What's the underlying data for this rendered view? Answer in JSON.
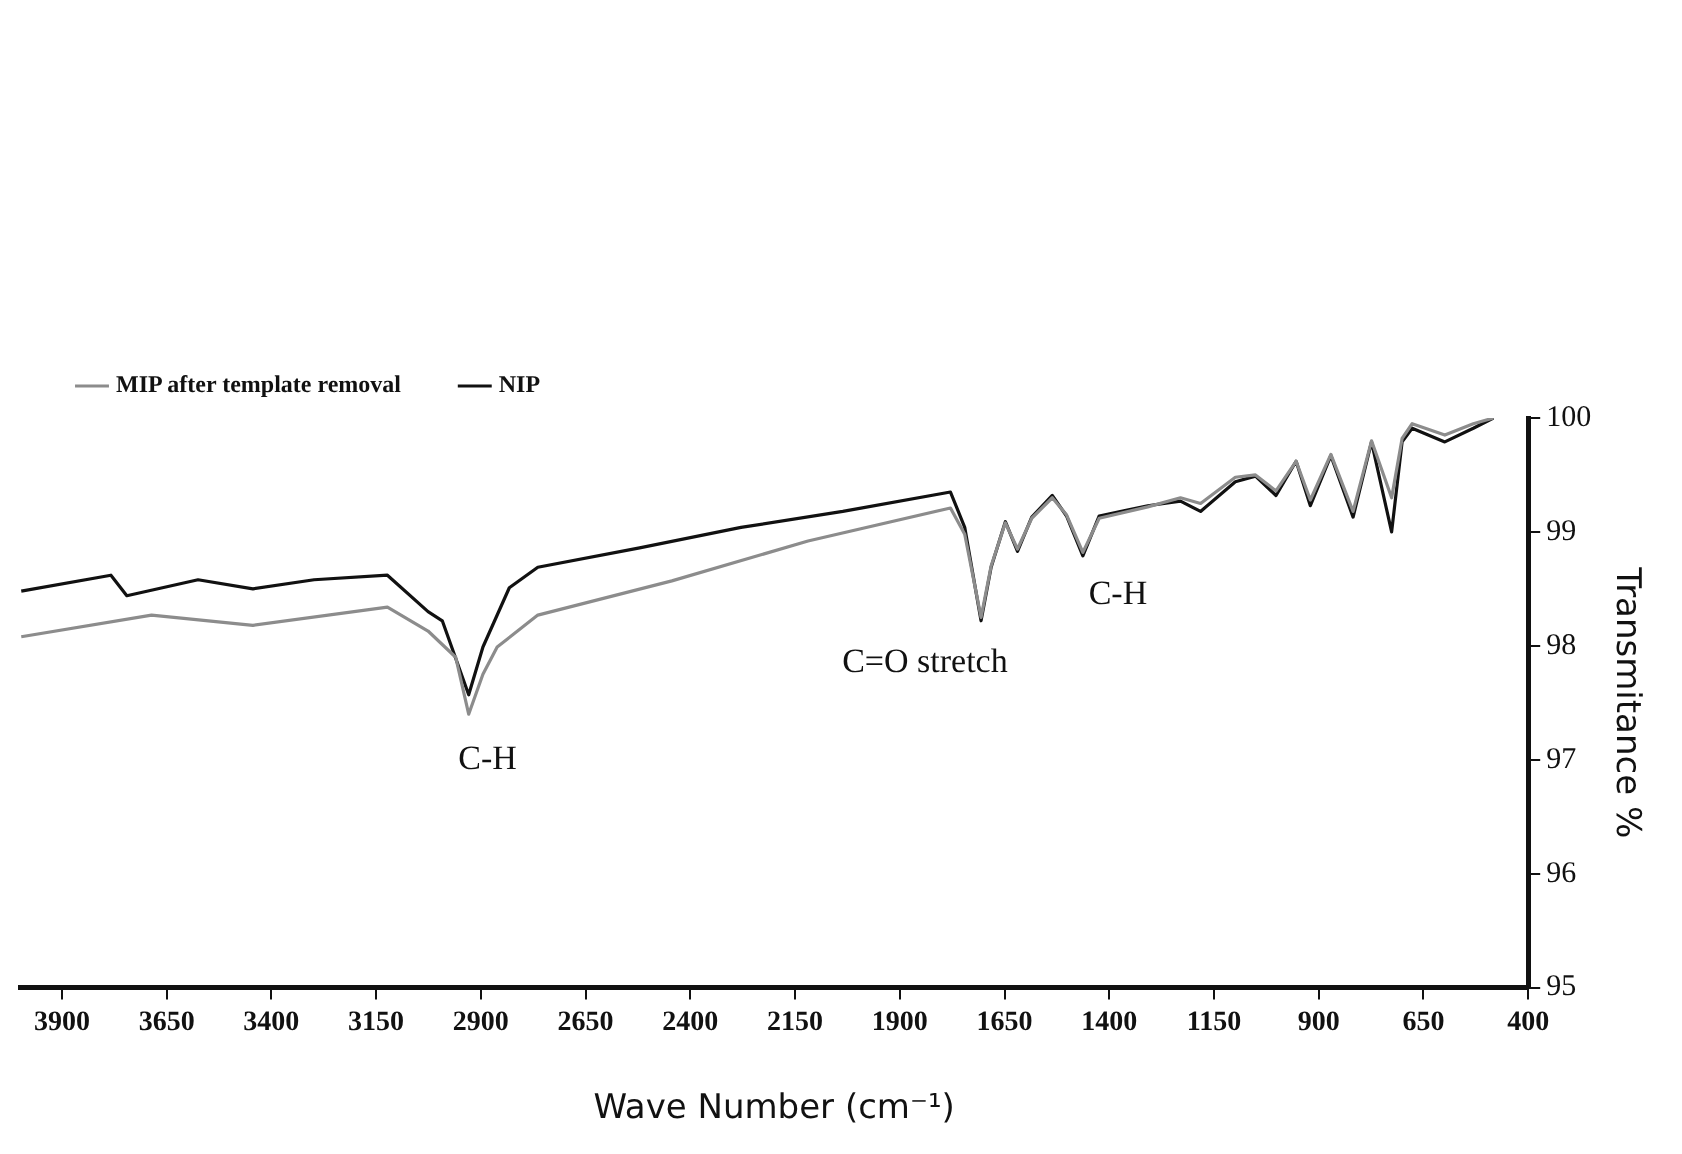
{
  "chart_data": {
    "type": "line",
    "xlabel": "Wave Number (cm⁻¹)",
    "ylabel": "Transmitance %",
    "xlim": [
      4000,
      400
    ],
    "ylim": [
      95,
      100
    ],
    "xticks": [
      3900,
      3650,
      3400,
      3150,
      2900,
      2650,
      2400,
      2150,
      1900,
      1650,
      1400,
      1150,
      900,
      650,
      400
    ],
    "yticks": [
      95,
      96,
      97,
      98,
      99,
      100
    ],
    "grid": false,
    "legend": "top left",
    "series": [
      {
        "name": "MIP after template removal",
        "color": "#8c8c8c",
        "x": [
          3997,
          3686,
          3444,
          3123,
          3026,
          2960,
          2929,
          2895,
          2861,
          2764,
          2444,
          2119,
          1779,
          1745,
          1706,
          1682,
          1648,
          1619,
          1585,
          1536,
          1502,
          1463,
          1424,
          1308,
          1230,
          1182,
          1099,
          1051,
          1002,
          954,
          920,
          871,
          818,
          774,
          726,
          701,
          677,
          599,
          531,
          483
        ],
        "values": [
          98.08,
          98.27,
          98.18,
          98.34,
          98.13,
          97.9,
          97.4,
          97.75,
          97.99,
          98.27,
          98.57,
          98.92,
          99.21,
          98.98,
          98.25,
          98.7,
          99.08,
          98.85,
          99.12,
          99.3,
          99.15,
          98.82,
          99.12,
          99.22,
          99.3,
          99.25,
          99.48,
          99.5,
          99.36,
          99.62,
          99.28,
          99.68,
          99.18,
          99.8,
          99.3,
          99.82,
          99.95,
          99.85,
          99.95,
          100
        ]
      },
      {
        "name": "NIP",
        "color": "#111111",
        "x": [
          3997,
          3783,
          3745,
          3575,
          3444,
          3298,
          3123,
          3026,
          2992,
          2929,
          2895,
          2832,
          2764,
          2521,
          2279,
          2036,
          1779,
          1745,
          1706,
          1682,
          1648,
          1619,
          1585,
          1536,
          1502,
          1463,
          1424,
          1308,
          1230,
          1182,
          1099,
          1051,
          1002,
          954,
          920,
          871,
          818,
          774,
          726,
          701,
          677,
          599,
          531,
          483
        ],
        "values": [
          98.48,
          98.62,
          98.44,
          98.58,
          98.5,
          98.58,
          98.62,
          98.3,
          98.22,
          97.57,
          97.99,
          98.51,
          98.69,
          98.86,
          99.04,
          99.18,
          99.35,
          99.04,
          98.22,
          98.69,
          99.09,
          98.83,
          99.13,
          99.32,
          99.14,
          98.79,
          99.14,
          99.23,
          99.27,
          99.18,
          99.44,
          99.49,
          99.32,
          99.62,
          99.23,
          99.67,
          99.13,
          99.79,
          99.0,
          99.79,
          99.91,
          99.79,
          99.91,
          100
        ]
      }
    ],
    "annotations": [
      "C-H",
      "C=O stretch",
      "C-H"
    ]
  }
}
